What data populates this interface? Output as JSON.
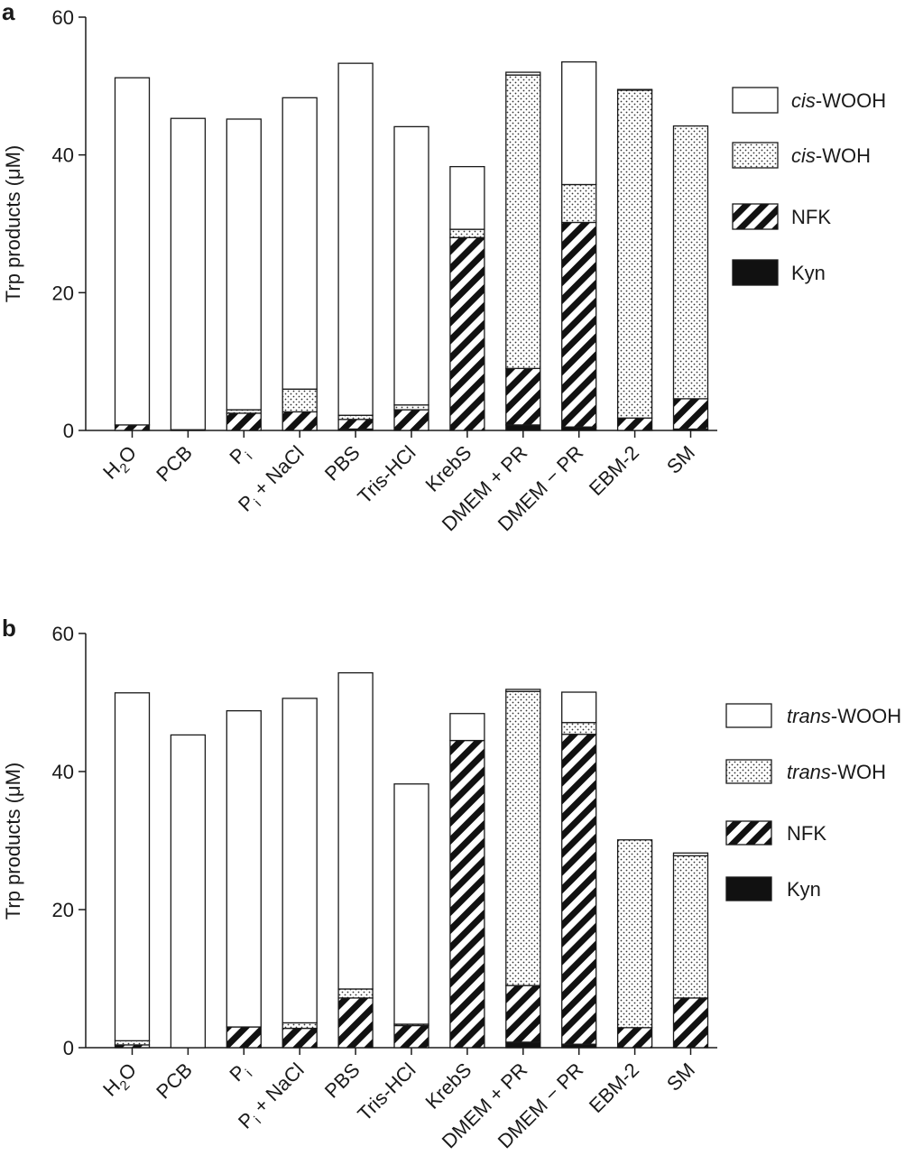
{
  "chart_data": [
    {
      "type": "bar",
      "stacked": true,
      "panel_label": "a",
      "ylabel": "Trp products (μM)",
      "ylim": [
        0,
        60
      ],
      "yticks": [
        0,
        20,
        40,
        60
      ],
      "categories": [
        {
          "main": "H",
          "sub": "2",
          "post": "O"
        },
        {
          "main": "PCB",
          "sub": "",
          "post": ""
        },
        {
          "main": "P",
          "sub": "i",
          "post": ""
        },
        {
          "main": "P",
          "sub": "i",
          "post": " + NaCl"
        },
        {
          "main": "PBS",
          "sub": "",
          "post": ""
        },
        {
          "main": "Tris-HCl",
          "sub": "",
          "post": ""
        },
        {
          "main": "KrebS",
          "sub": "",
          "post": ""
        },
        {
          "main": "DMEM + PR",
          "sub": "",
          "post": ""
        },
        {
          "main": "DMEM − PR",
          "sub": "",
          "post": ""
        },
        {
          "main": "EBM-2",
          "sub": "",
          "post": ""
        },
        {
          "main": "SM",
          "sub": "",
          "post": ""
        }
      ],
      "series": [
        {
          "name": "Kyn",
          "pattern": "solid",
          "values": [
            0,
            0,
            0,
            0,
            0.2,
            0,
            0,
            0.8,
            0.5,
            0,
            0.2
          ]
        },
        {
          "name": "NFK",
          "pattern": "hatch",
          "values": [
            0.8,
            0.1,
            2.5,
            2.7,
            1.4,
            3.0,
            28.0,
            8.2,
            29.7,
            1.8,
            4.4
          ]
        },
        {
          "name_italic": "cis",
          "name_rest": "-WOH",
          "pattern": "dots",
          "values": [
            0,
            0,
            0.5,
            3.3,
            0.6,
            0.7,
            1.2,
            42.6,
            5.5,
            47.6,
            39.6
          ]
        },
        {
          "name_italic": "cis",
          "name_rest": "-WOOH",
          "pattern": "white",
          "values": [
            50.4,
            45.2,
            42.2,
            42.3,
            51.1,
            40.4,
            9.1,
            0.4,
            17.8,
            0.1,
            0
          ]
        }
      ],
      "legend_position": "right"
    },
    {
      "type": "bar",
      "stacked": true,
      "panel_label": "b",
      "ylabel": "Trp products (μM)",
      "ylim": [
        0,
        60
      ],
      "yticks": [
        0,
        20,
        40,
        60
      ],
      "categories": [
        {
          "main": "H",
          "sub": "2",
          "post": "O"
        },
        {
          "main": "PCB",
          "sub": "",
          "post": ""
        },
        {
          "main": "P",
          "sub": "i",
          "post": ""
        },
        {
          "main": "P",
          "sub": "i",
          "post": " + NaCl"
        },
        {
          "main": "PBS",
          "sub": "",
          "post": ""
        },
        {
          "main": "Tris-HCl",
          "sub": "",
          "post": ""
        },
        {
          "main": "KrebS",
          "sub": "",
          "post": ""
        },
        {
          "main": "DMEM + PR",
          "sub": "",
          "post": ""
        },
        {
          "main": "DMEM − PR",
          "sub": "",
          "post": ""
        },
        {
          "main": "EBM-2",
          "sub": "",
          "post": ""
        },
        {
          "main": "SM",
          "sub": "",
          "post": ""
        }
      ],
      "series": [
        {
          "name": "Kyn",
          "pattern": "solid",
          "values": [
            0,
            0,
            0,
            0,
            0,
            0,
            0,
            0.8,
            0.5,
            0,
            0
          ]
        },
        {
          "name": "NFK",
          "pattern": "hatch",
          "values": [
            0.4,
            0,
            3.0,
            2.8,
            7.2,
            3.2,
            44.5,
            8.2,
            44.9,
            2.9,
            7.2
          ]
        },
        {
          "name_italic": "trans",
          "name_rest": "-WOH",
          "pattern": "dots",
          "values": [
            0.6,
            0,
            0,
            0.8,
            1.3,
            0.2,
            0,
            42.6,
            1.7,
            27.2,
            20.6
          ]
        },
        {
          "name_italic": "trans",
          "name_rest": "-WOOH",
          "pattern": "white",
          "values": [
            50.4,
            45.3,
            45.8,
            47.0,
            45.8,
            34.8,
            3.9,
            0.3,
            4.4,
            0,
            0.4
          ]
        }
      ],
      "legend_position": "right"
    }
  ]
}
